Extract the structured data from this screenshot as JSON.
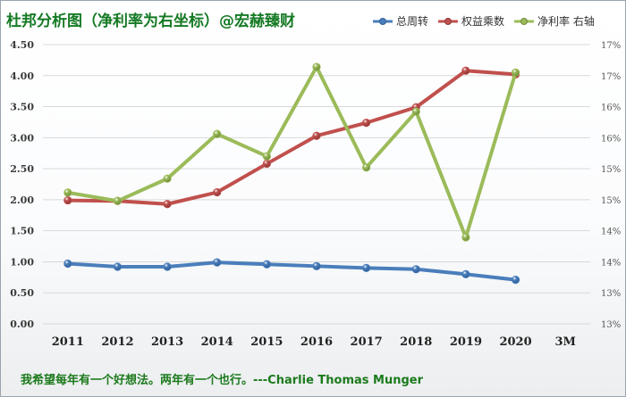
{
  "header": {
    "title": "杜邦分析图（净利率为右坐标）@宏赫臻财"
  },
  "footer": {
    "quote": "我希望每年有一个好想法。两年有一个也行。---Charlie Thomas Munger"
  },
  "colors": {
    "asset_turnover": "#4a7ebb",
    "equity_multiplier": "#c0504d",
    "net_margin": "#9bbb59",
    "title": "#157a24",
    "grid": "#d9d9d9"
  },
  "chart_data": {
    "type": "line",
    "categories": [
      "2011",
      "2012",
      "2013",
      "2014",
      "2015",
      "2016",
      "2017",
      "2018",
      "2019",
      "2020",
      "3M"
    ],
    "series": [
      {
        "name": "总周转",
        "axis": "left",
        "values": [
          0.97,
          0.92,
          0.92,
          0.99,
          0.96,
          0.93,
          0.9,
          0.88,
          0.8,
          0.71,
          null
        ]
      },
      {
        "name": "权益乘数",
        "axis": "left",
        "values": [
          1.99,
          1.98,
          1.93,
          2.12,
          2.58,
          3.03,
          3.24,
          3.49,
          4.08,
          4.02,
          null
        ]
      },
      {
        "name": "净利率 右轴",
        "axis": "right",
        "values": [
          15.35,
          15.2,
          15.6,
          16.4,
          16.0,
          17.6,
          15.8,
          16.8,
          14.55,
          17.5,
          null
        ]
      }
    ],
    "y_left": {
      "min": 0,
      "max": 4.5,
      "ticks": [
        "0.00",
        "0.50",
        "1.00",
        "1.50",
        "2.00",
        "2.50",
        "3.00",
        "3.50",
        "4.00",
        "4.50"
      ]
    },
    "y_right": {
      "min": 13,
      "max": 18,
      "ticks": [
        "13%",
        "13%",
        "14%",
        "14%",
        "15%",
        "15%",
        "16%",
        "16%",
        "17%",
        "17%"
      ]
    },
    "grid": true,
    "legend": "top-right"
  }
}
